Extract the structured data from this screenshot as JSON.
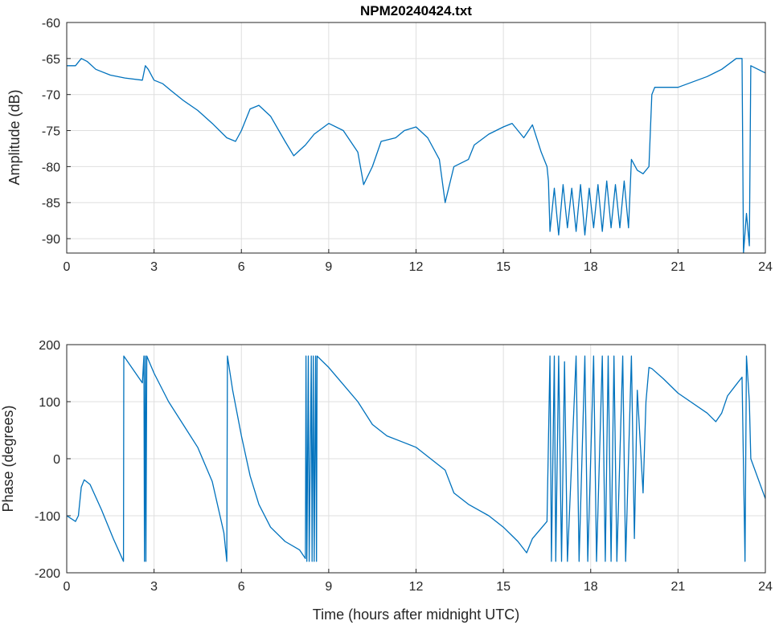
{
  "chart_data": [
    {
      "type": "line",
      "title": "NPM20240424.txt",
      "xlabel": "",
      "ylabel": "Amplitude (dB)",
      "xlim": [
        0,
        24
      ],
      "ylim": [
        -92,
        -60
      ],
      "xticks": [
        0,
        3,
        6,
        9,
        12,
        15,
        18,
        21,
        24
      ],
      "yticks": [
        -60,
        -65,
        -70,
        -75,
        -80,
        -85,
        -90
      ],
      "grid": true,
      "color": "#0072BD",
      "series": [
        {
          "name": "amplitude",
          "points": [
            [
              0,
              -66
            ],
            [
              0.3,
              -66
            ],
            [
              0.5,
              -65
            ],
            [
              0.7,
              -65.4
            ],
            [
              1,
              -66.5
            ],
            [
              1.5,
              -67.3
            ],
            [
              2,
              -67.7
            ],
            [
              2.6,
              -68
            ],
            [
              2.7,
              -66
            ],
            [
              2.8,
              -66.5
            ],
            [
              3,
              -68
            ],
            [
              3.3,
              -68.5
            ],
            [
              3.6,
              -69.5
            ],
            [
              4,
              -70.8
            ],
            [
              4.5,
              -72.2
            ],
            [
              5,
              -74
            ],
            [
              5.5,
              -76
            ],
            [
              5.8,
              -76.5
            ],
            [
              6,
              -75
            ],
            [
              6.3,
              -72
            ],
            [
              6.6,
              -71.5
            ],
            [
              7,
              -73
            ],
            [
              7.5,
              -76.5
            ],
            [
              7.8,
              -78.5
            ],
            [
              8.2,
              -77
            ],
            [
              8.5,
              -75.5
            ],
            [
              9,
              -74
            ],
            [
              9.5,
              -75
            ],
            [
              10,
              -78
            ],
            [
              10.2,
              -82.5
            ],
            [
              10.5,
              -80
            ],
            [
              10.8,
              -76.5
            ],
            [
              11.3,
              -76
            ],
            [
              11.6,
              -75
            ],
            [
              12,
              -74.5
            ],
            [
              12.4,
              -76
            ],
            [
              12.8,
              -79
            ],
            [
              13,
              -85
            ],
            [
              13.3,
              -80
            ],
            [
              13.8,
              -79
            ],
            [
              14,
              -77
            ],
            [
              14.5,
              -75.5
            ],
            [
              15,
              -74.5
            ],
            [
              15.3,
              -74
            ],
            [
              15.7,
              -76
            ],
            [
              16,
              -74.2
            ],
            [
              16.3,
              -78
            ],
            [
              16.5,
              -80
            ],
            [
              16.55,
              -82
            ],
            [
              16.6,
              -89
            ],
            [
              16.75,
              -83
            ],
            [
              16.9,
              -89.5
            ],
            [
              17.05,
              -82.5
            ],
            [
              17.2,
              -88.5
            ],
            [
              17.35,
              -83
            ],
            [
              17.5,
              -89
            ],
            [
              17.65,
              -82.5
            ],
            [
              17.8,
              -89.5
            ],
            [
              17.95,
              -83
            ],
            [
              18.1,
              -88.5
            ],
            [
              18.25,
              -82.5
            ],
            [
              18.4,
              -89
            ],
            [
              18.55,
              -82
            ],
            [
              18.7,
              -88.5
            ],
            [
              18.85,
              -82.5
            ],
            [
              19,
              -88.5
            ],
            [
              19.15,
              -82
            ],
            [
              19.3,
              -88.5
            ],
            [
              19.4,
              -79
            ],
            [
              19.6,
              -80.5
            ],
            [
              19.8,
              -81
            ],
            [
              20,
              -80
            ],
            [
              20.1,
              -70
            ],
            [
              20.2,
              -69
            ],
            [
              21,
              -69
            ],
            [
              22,
              -67.5
            ],
            [
              22.5,
              -66.5
            ],
            [
              23,
              -65
            ],
            [
              23.2,
              -65
            ],
            [
              23.25,
              -92
            ],
            [
              23.35,
              -86.5
            ],
            [
              23.45,
              -91
            ],
            [
              23.5,
              -66
            ],
            [
              24,
              -67
            ]
          ]
        }
      ]
    },
    {
      "type": "line",
      "title": "",
      "xlabel": "Time (hours after midnight UTC)",
      "ylabel": "Phase (degrees)",
      "xlim": [
        0,
        24
      ],
      "ylim": [
        -200,
        200
      ],
      "xticks": [
        0,
        3,
        6,
        9,
        12,
        15,
        18,
        21,
        24
      ],
      "yticks": [
        200,
        100,
        0,
        -100,
        -200
      ],
      "grid": true,
      "color": "#0072BD",
      "series": [
        {
          "name": "phase",
          "points": [
            [
              0,
              -100
            ],
            [
              0.3,
              -110
            ],
            [
              0.4,
              -100
            ],
            [
              0.5,
              -50
            ],
            [
              0.6,
              -37
            ],
            [
              0.8,
              -45
            ],
            [
              1.2,
              -90
            ],
            [
              1.6,
              -140
            ],
            [
              1.95,
              -180
            ],
            [
              1.96,
              180
            ],
            [
              2.6,
              133
            ],
            [
              2.65,
              180
            ],
            [
              2.67,
              -180
            ],
            [
              2.7,
              180
            ],
            [
              2.72,
              -180
            ],
            [
              2.75,
              180
            ],
            [
              3,
              150
            ],
            [
              3.5,
              100
            ],
            [
              4,
              60
            ],
            [
              4.5,
              20
            ],
            [
              5,
              -40
            ],
            [
              5.4,
              -130
            ],
            [
              5.5,
              -180
            ],
            [
              5.52,
              180
            ],
            [
              5.7,
              120
            ],
            [
              6,
              40
            ],
            [
              6.3,
              -30
            ],
            [
              6.6,
              -80
            ],
            [
              7,
              -120
            ],
            [
              7.5,
              -145
            ],
            [
              8,
              -160
            ],
            [
              8.2,
              -175
            ],
            [
              8.22,
              180
            ],
            [
              8.25,
              -180
            ],
            [
              8.3,
              180
            ],
            [
              8.33,
              -180
            ],
            [
              8.4,
              180
            ],
            [
              8.43,
              -180
            ],
            [
              8.47,
              180
            ],
            [
              8.5,
              -180
            ],
            [
              8.55,
              180
            ],
            [
              8.58,
              -180
            ],
            [
              8.6,
              180
            ],
            [
              9,
              160
            ],
            [
              9.5,
              130
            ],
            [
              10,
              100
            ],
            [
              10.5,
              60
            ],
            [
              11,
              40
            ],
            [
              11.5,
              30
            ],
            [
              12,
              20
            ],
            [
              12.5,
              0
            ],
            [
              13,
              -20
            ],
            [
              13.3,
              -60
            ],
            [
              13.8,
              -80
            ],
            [
              14.5,
              -100
            ],
            [
              15,
              -120
            ],
            [
              15.5,
              -145
            ],
            [
              15.8,
              -165
            ],
            [
              16,
              -140
            ],
            [
              16.5,
              -110
            ],
            [
              16.6,
              180
            ],
            [
              16.65,
              -180
            ],
            [
              16.75,
              180
            ],
            [
              16.8,
              -180
            ],
            [
              16.9,
              180
            ],
            [
              17,
              -180
            ],
            [
              17.1,
              170
            ],
            [
              17.2,
              -180
            ],
            [
              17.5,
              180
            ],
            [
              17.6,
              -180
            ],
            [
              17.8,
              180
            ],
            [
              17.9,
              -180
            ],
            [
              18.1,
              180
            ],
            [
              18.2,
              -180
            ],
            [
              18.4,
              180
            ],
            [
              18.5,
              -180
            ],
            [
              18.6,
              180
            ],
            [
              18.7,
              -180
            ],
            [
              18.8,
              180
            ],
            [
              18.9,
              -180
            ],
            [
              19.1,
              180
            ],
            [
              19.2,
              -180
            ],
            [
              19.4,
              180
            ],
            [
              19.5,
              -140
            ],
            [
              19.6,
              120
            ],
            [
              19.8,
              -60
            ],
            [
              19.9,
              100
            ],
            [
              20,
              160
            ],
            [
              20.1,
              158
            ],
            [
              20.5,
              140
            ],
            [
              21,
              115
            ],
            [
              22,
              80
            ],
            [
              22.3,
              65
            ],
            [
              22.5,
              80
            ],
            [
              22.7,
              110
            ],
            [
              23,
              130
            ],
            [
              23.2,
              143
            ],
            [
              23.3,
              -180
            ],
            [
              23.35,
              180
            ],
            [
              23.45,
              100
            ],
            [
              23.5,
              0
            ],
            [
              24,
              -70
            ]
          ]
        }
      ]
    }
  ]
}
